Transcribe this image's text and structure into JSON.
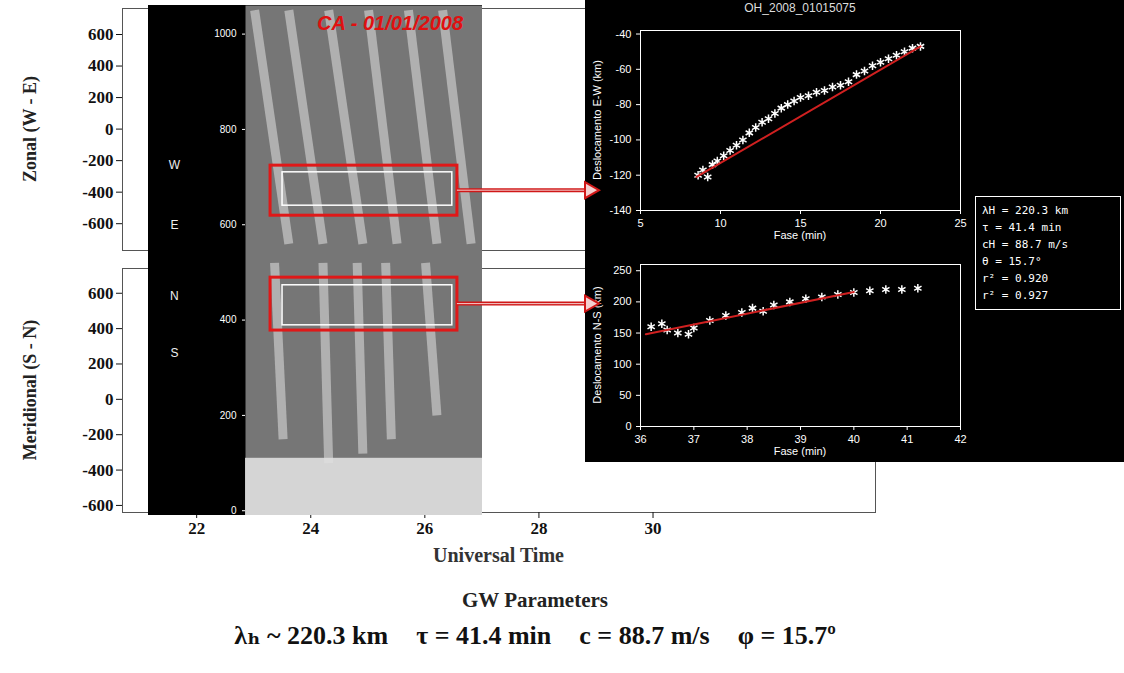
{
  "chart_data": [
    {
      "type": "image_axes",
      "ylabel": "Zonal (W - E)",
      "xlim": [
        20.7,
        33.9
      ],
      "ylim": [
        -770,
        765
      ],
      "yticks": [
        -600,
        -400,
        -200,
        0,
        200,
        400,
        600
      ],
      "tick_labels": "y"
    },
    {
      "type": "image_axes",
      "ylabel": "Meridional (S - N)",
      "xlabel": "Universal Time",
      "xlim": [
        20.7,
        33.9
      ],
      "ylim": [
        -640,
        740
      ],
      "xticks": [
        22,
        24,
        26,
        28,
        30
      ],
      "yticks": [
        -600,
        -400,
        -200,
        0,
        200,
        400,
        600
      ]
    },
    {
      "type": "keogram",
      "title": "CA - 01/01/2008",
      "xlim": [
        22.84,
        27.0
      ],
      "ylim": [
        -10,
        1060
      ],
      "yticks": [
        0,
        200,
        400,
        600,
        800,
        1000
      ],
      "tick_labels": "y",
      "letters": [
        {
          "text": "W",
          "y": 725
        },
        {
          "text": "E",
          "y": 600
        },
        {
          "text": "N",
          "y": 450
        },
        {
          "text": "S",
          "y": 330
        }
      ],
      "bright_region": {
        "x": [
          22.84,
          27.0
        ],
        "y": [
          -10,
          110
        ]
      },
      "streaks": [
        {
          "x": [
            23.0,
            23.6
          ],
          "y": [
            1050,
            560
          ]
        },
        {
          "x": [
            23.6,
            24.2
          ],
          "y": [
            1050,
            560
          ]
        },
        {
          "x": [
            24.3,
            24.9
          ],
          "y": [
            1050,
            560
          ]
        },
        {
          "x": [
            25.0,
            25.5
          ],
          "y": [
            1050,
            560
          ]
        },
        {
          "x": [
            25.7,
            26.2
          ],
          "y": [
            1050,
            560
          ]
        },
        {
          "x": [
            26.3,
            26.8
          ],
          "y": [
            1050,
            560
          ]
        },
        {
          "x": [
            23.35,
            23.5
          ],
          "y": [
            520,
            150
          ]
        },
        {
          "x": [
            24.2,
            24.3
          ],
          "y": [
            520,
            100
          ]
        },
        {
          "x": [
            24.8,
            24.9
          ],
          "y": [
            520,
            120
          ]
        },
        {
          "x": [
            25.3,
            25.4
          ],
          "y": [
            520,
            150
          ]
        },
        {
          "x": [
            26.0,
            26.2
          ],
          "y": [
            520,
            200
          ]
        }
      ],
      "windows": [
        {
          "x": [
            23.28,
            26.56
          ],
          "y": [
            619,
            724
          ]
        },
        {
          "x": [
            23.28,
            26.56
          ],
          "y": [
            378,
            489
          ]
        }
      ],
      "inner_windows": [
        {
          "x": [
            23.49,
            26.47
          ],
          "y": [
            640,
            710
          ]
        },
        {
          "x": [
            23.49,
            26.47
          ],
          "y": [
            389,
            473
          ]
        }
      ]
    },
    {
      "type": "scatter",
      "title": "OH_2008_01015075",
      "xlabel": "Fase (min)",
      "ylabel": "Deslocamento E-W (km)",
      "xlim": [
        5,
        25
      ],
      "ylim": [
        -140,
        -38
      ],
      "xticks": [
        5,
        10,
        15,
        20,
        25
      ],
      "yticks": [
        -140,
        -120,
        -100,
        -80,
        -60,
        -40
      ],
      "marker": "asterisk",
      "color": "#ffffff",
      "x": [
        8.6,
        8.9,
        9.2,
        9.5,
        9.8,
        10.2,
        10.6,
        11.0,
        11.4,
        11.8,
        12.2,
        12.6,
        13.0,
        13.4,
        13.8,
        14.2,
        14.6,
        15.0,
        15.5,
        16.0,
        16.5,
        17.0,
        17.5,
        18.0,
        18.5,
        19.0,
        19.5,
        20.0,
        20.5,
        21.0,
        21.5,
        22.0,
        22.5
      ],
      "y": [
        -120,
        -117,
        -121,
        -114,
        -112,
        -109,
        -106,
        -103,
        -100,
        -96,
        -93,
        -90,
        -88,
        -85,
        -82,
        -80,
        -78,
        -76,
        -75,
        -73,
        -72,
        -70,
        -69,
        -67,
        -63,
        -61,
        -58,
        -56,
        -54,
        -52,
        -50,
        -48,
        -47
      ],
      "fit": {
        "x": [
          8.5,
          22.5
        ],
        "y": [
          -121,
          -47
        ],
        "color": "#d02020"
      }
    },
    {
      "type": "scatter",
      "xlabel": "Fase (min)",
      "ylabel": "Deslocamento N-S (km)",
      "xlim": [
        36,
        42
      ],
      "ylim": [
        0,
        260
      ],
      "xticks": [
        36,
        37,
        38,
        39,
        40,
        41,
        42
      ],
      "yticks": [
        0,
        50,
        100,
        150,
        200,
        250
      ],
      "marker": "asterisk",
      "color": "#ffffff",
      "x": [
        36.2,
        36.4,
        36.5,
        36.7,
        36.9,
        37.0,
        37.3,
        37.6,
        37.9,
        38.1,
        38.3,
        38.5,
        38.8,
        39.1,
        39.4,
        39.7,
        40.0,
        40.3,
        40.6,
        40.9,
        41.2
      ],
      "y": [
        160,
        165,
        155,
        150,
        148,
        158,
        170,
        178,
        183,
        190,
        185,
        195,
        200,
        205,
        208,
        212,
        215,
        218,
        220,
        220,
        222
      ],
      "fit": {
        "x": [
          36.1,
          40.0
        ],
        "y": [
          148,
          216
        ],
        "color": "#d02020"
      }
    }
  ],
  "fit_box": [
    "λH = 220.3 km",
    "τ = 41.4 min",
    "cH = 88.7 m/s",
    "θ = 15.7°",
    "r² = 0.920",
    "r² = 0.927"
  ],
  "figure": {
    "heading": "GW Parameters",
    "items": [
      "λₕ ~ 220.3 km",
      "τ = 41.4 min",
      "c = 88.7 m/s",
      "φ = 15.7º"
    ]
  }
}
